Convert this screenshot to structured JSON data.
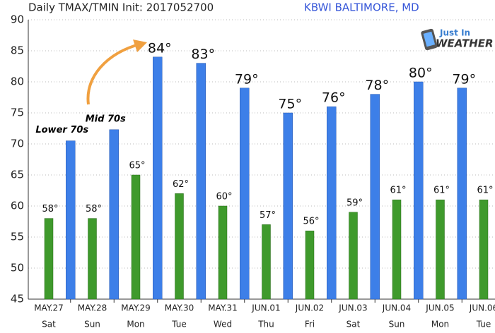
{
  "chart_data": {
    "type": "bar",
    "title": "Daily TMAX/TMIN Init: 2017052700",
    "subtitle": "KBWI BALTIMORE, MD",
    "logo": {
      "line1": "Just In",
      "line2": "WEATHER"
    },
    "categories": [
      "MAY.27",
      "MAY.28",
      "MAY.29",
      "MAY.30",
      "MAY.31",
      "JUN.01",
      "JUN.02",
      "JUN.03",
      "JUN.04",
      "JUN.05",
      "JUN.06"
    ],
    "weekdays": [
      "Sat",
      "Sun",
      "Mon",
      "Tue",
      "Wed",
      "Thu",
      "Fri",
      "Sat",
      "Sun",
      "Mon",
      "Tue"
    ],
    "series": [
      {
        "name": "TMIN",
        "color": "#3f9a2c",
        "values": [
          58,
          58,
          65,
          62,
          60,
          57,
          56,
          59,
          61,
          61,
          61
        ],
        "value_labels": [
          "58°",
          "58°",
          "65°",
          "62°",
          "60°",
          "57°",
          "56°",
          "59°",
          "61°",
          "61°",
          "61°"
        ]
      },
      {
        "name": "TMAX",
        "color": "#3d7fe8",
        "values": [
          70.5,
          72.3,
          84,
          83,
          79,
          75,
          76,
          78,
          80,
          79,
          null
        ],
        "value_labels": [
          null,
          null,
          "84°",
          "83°",
          "79°",
          "75°",
          "76°",
          "78°",
          "80°",
          "79°",
          null
        ]
      }
    ],
    "annotations": [
      {
        "text": "Lower  70s",
        "series": 1,
        "index": 0
      },
      {
        "text": "Mid 70s",
        "series": 1,
        "index": 1
      }
    ],
    "ylim": [
      45,
      90
    ],
    "yticks": [
      45,
      50,
      55,
      60,
      65,
      70,
      75,
      80,
      85,
      90
    ],
    "grid": true
  }
}
